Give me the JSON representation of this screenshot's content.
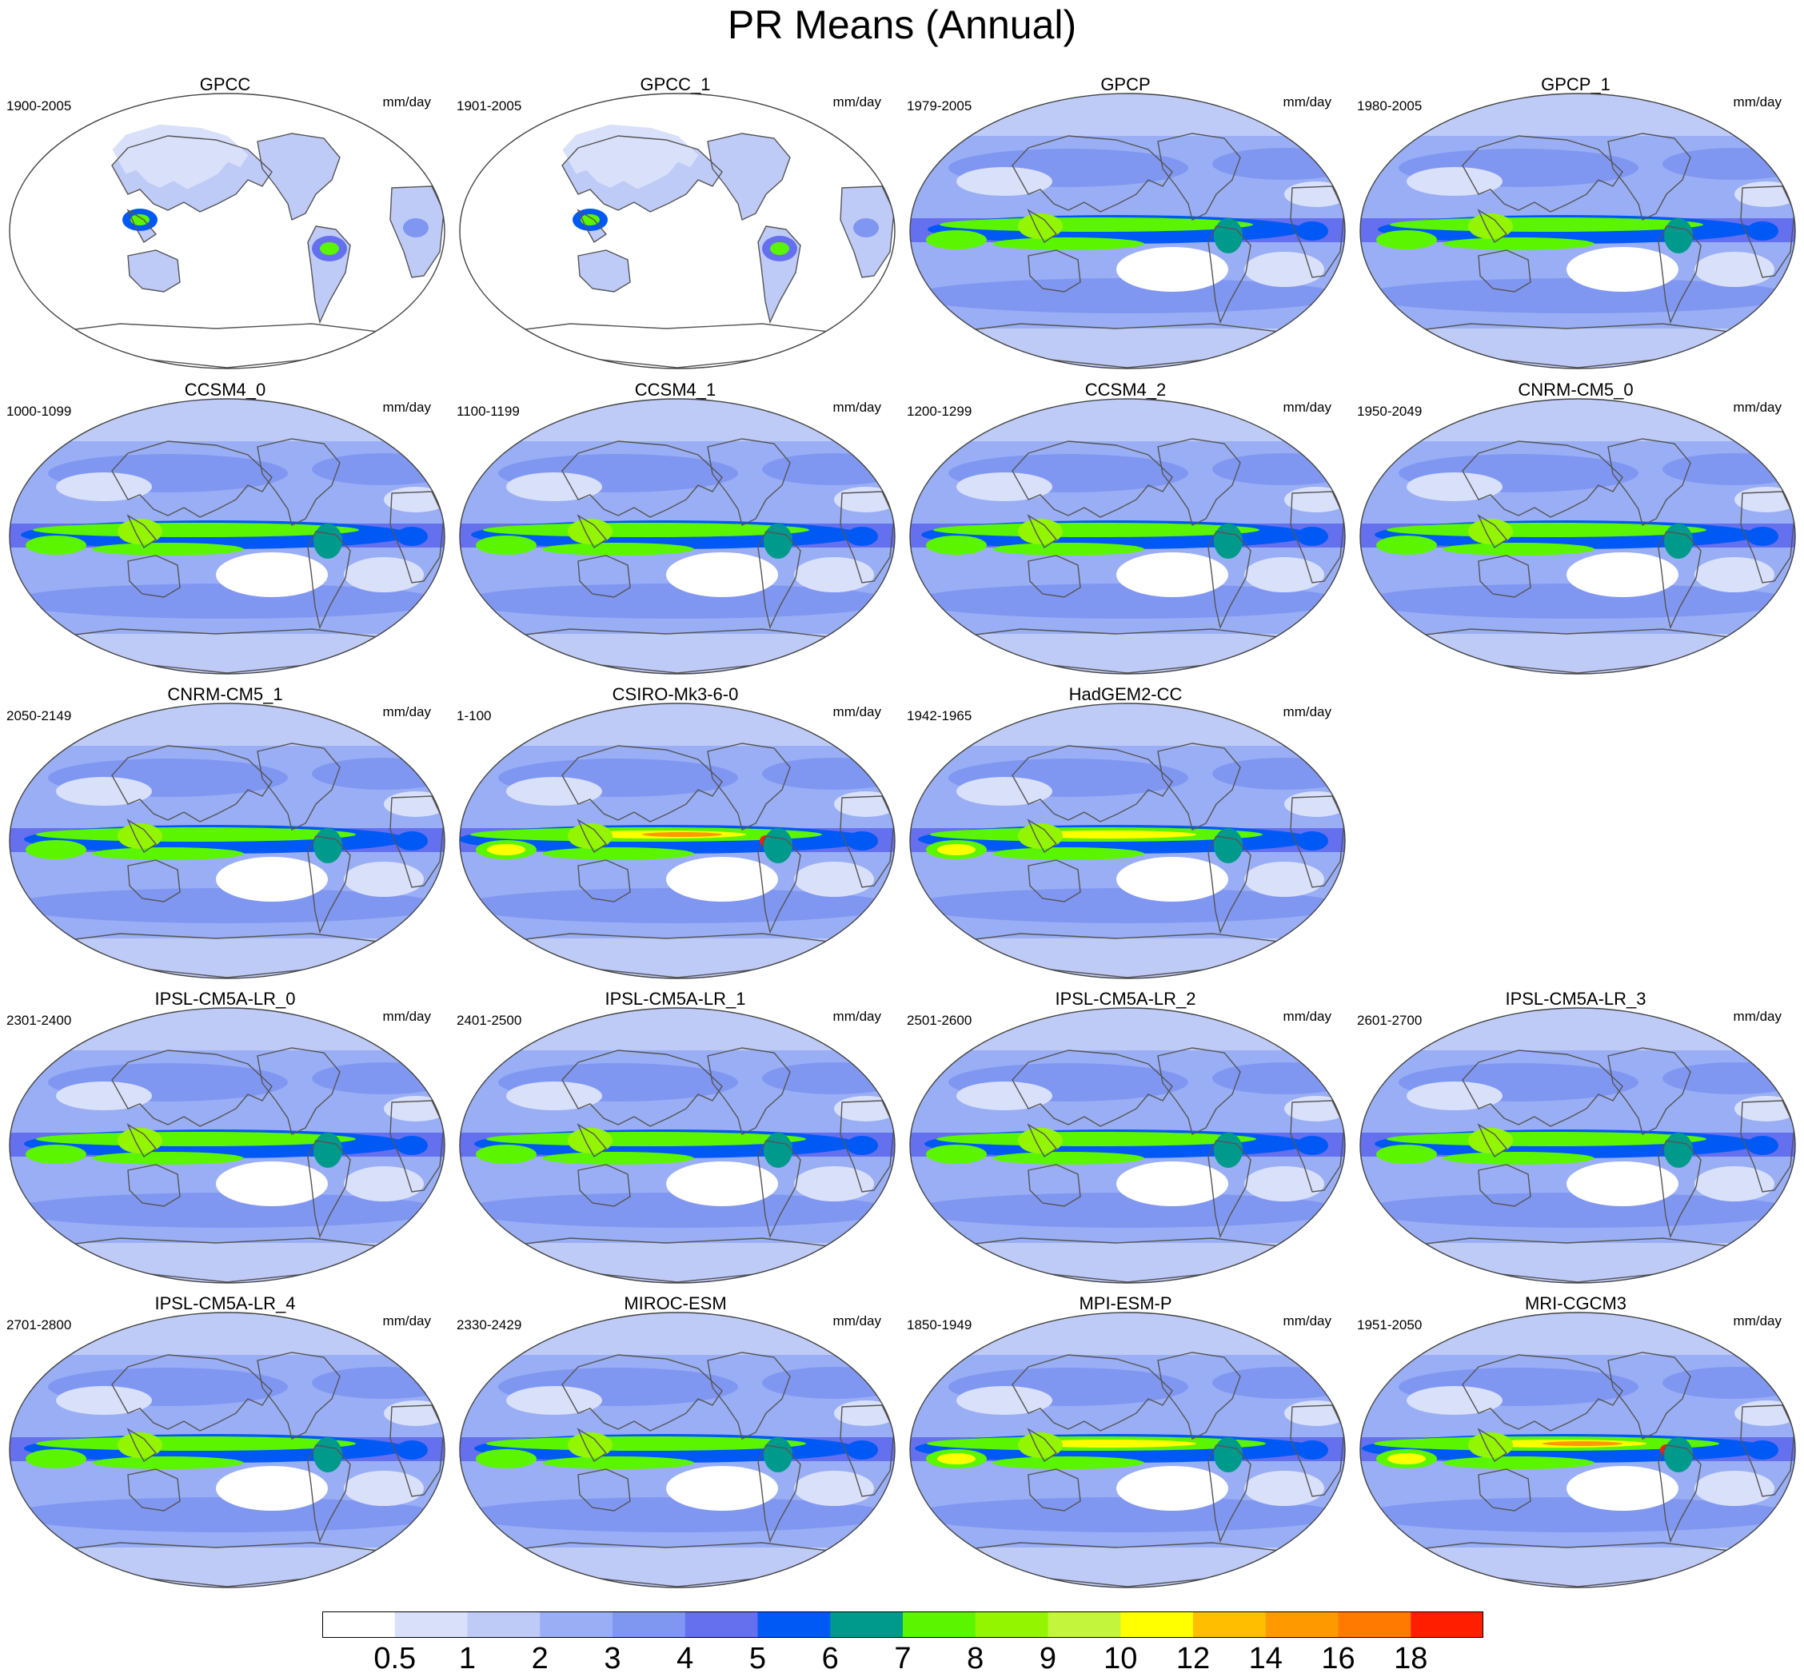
{
  "title": "PR Means (Annual)",
  "units": "mm/day",
  "colorbar": {
    "colors": [
      "#ffffff",
      "#d9e0fa",
      "#bfcbf7",
      "#99aef4",
      "#8097f2",
      "#6470ee",
      "#0059f5",
      "#009a8c",
      "#5cf500",
      "#94f500",
      "#c4f53d",
      "#ffff00",
      "#ffbf00",
      "#ff9900",
      "#ff7a00",
      "#ff1f00"
    ],
    "labels": [
      "0.5",
      "1",
      "2",
      "3",
      "4",
      "5",
      "6",
      "7",
      "8",
      "9",
      "10",
      "12",
      "14",
      "16",
      "18"
    ]
  },
  "panels": [
    {
      "name": "GPCC",
      "period": "1900-2005",
      "coverage": "land",
      "intensity": 0.6
    },
    {
      "name": "GPCC_1",
      "period": "1901-2005",
      "coverage": "land",
      "intensity": 0.6
    },
    {
      "name": "GPCP",
      "period": "1979-2005",
      "coverage": "global",
      "intensity": 0.7
    },
    {
      "name": "GPCP_1",
      "period": "1980-2005",
      "coverage": "global",
      "intensity": 0.7
    },
    {
      "name": "CCSM4_0",
      "period": "1000-1099",
      "coverage": "global",
      "intensity": 0.8
    },
    {
      "name": "CCSM4_1",
      "period": "1100-1199",
      "coverage": "global",
      "intensity": 0.8
    },
    {
      "name": "CCSM4_2",
      "period": "1200-1299",
      "coverage": "global",
      "intensity": 0.8
    },
    {
      "name": "CNRM-CM5_0",
      "period": "1950-2049",
      "coverage": "global",
      "intensity": 0.75
    },
    {
      "name": "CNRM-CM5_1",
      "period": "2050-2149",
      "coverage": "global",
      "intensity": 0.75
    },
    {
      "name": "CSIRO-Mk3-6-0",
      "period": "1-100",
      "coverage": "global",
      "intensity": 1.0
    },
    {
      "name": "HadGEM2-CC",
      "period": "1942-1965",
      "coverage": "global",
      "intensity": 0.85
    },
    {
      "name": "IPSL-CM5A-LR_0",
      "period": "2301-2400",
      "coverage": "global",
      "intensity": 0.75
    },
    {
      "name": "IPSL-CM5A-LR_1",
      "period": "2401-2500",
      "coverage": "global",
      "intensity": 0.75
    },
    {
      "name": "IPSL-CM5A-LR_2",
      "period": "2501-2600",
      "coverage": "global",
      "intensity": 0.75
    },
    {
      "name": "IPSL-CM5A-LR_3",
      "period": "2601-2700",
      "coverage": "global",
      "intensity": 0.75
    },
    {
      "name": "IPSL-CM5A-LR_4",
      "period": "2701-2800",
      "coverage": "global",
      "intensity": 0.75
    },
    {
      "name": "MIROC-ESM",
      "period": "2330-2429",
      "coverage": "global",
      "intensity": 0.75
    },
    {
      "name": "MPI-ESM-P",
      "period": "1850-1949",
      "coverage": "global",
      "intensity": 0.9
    },
    {
      "name": "MRI-CGCM3",
      "period": "1951-2050",
      "coverage": "global",
      "intensity": 0.95
    }
  ]
}
